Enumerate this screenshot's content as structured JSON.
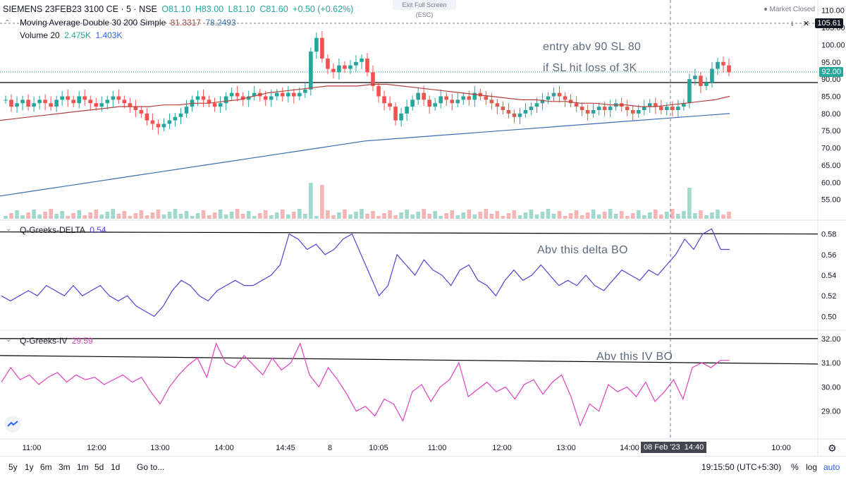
{
  "header": {
    "symbol": "SIEMENS 23FEB23 3100 CE · 5 · NSE",
    "open": "O81.10",
    "high": "H83.00",
    "low": "L81.10",
    "close": "C81.60",
    "change": "+0.50 (+0.62%)",
    "exit_fullscreen": "Exit Full Screen (ESC)",
    "market_status": "Market Closed"
  },
  "indicators": {
    "ma_label": "Moving Average Double 30 200 Simple",
    "ma_value_1": "81.3317",
    "ma_value_2": "78.2493",
    "volume_label": "Volume 20",
    "volume_value_1": "2.475K",
    "volume_value_2": "1.403K",
    "delta_label": "Q-Greeks-DELTA",
    "delta_value": "0.54",
    "iv_label": "Q-Greeks-IV",
    "iv_value": "29.59"
  },
  "annotations": {
    "entry": "entry abv 90 SL 80",
    "loss": "if SL hit loss of 3K",
    "delta_note": "Abv this delta BO",
    "iv_note": "Abv this IV BO"
  },
  "price_labels": {
    "current_high": "105.61",
    "current": "92.00"
  },
  "crosshair": {
    "date": "08 Feb '23",
    "time": "14:40"
  },
  "bottom_bar": {
    "timeframes": [
      "5y",
      "1y",
      "6m",
      "3m",
      "1m",
      "5d",
      "1d"
    ],
    "goto": "Go to...",
    "clock": "19:15:50 (UTC+5:30)",
    "percent": "%",
    "log": "log",
    "auto": "auto"
  },
  "colors": {
    "up": "#26a69a",
    "down": "#ef5350",
    "ma30": "#b2413a",
    "ma200": "#3a6fb2",
    "delta": "#5b3fd6",
    "iv": "#e040c0",
    "volume_up": "#9fd9cd",
    "volume_down": "#f6b4b4"
  },
  "chart_data": [
    {
      "type": "candlestick",
      "ylim": [
        50,
        112
      ],
      "yticks": [
        "110.00",
        "105.00",
        "100.00",
        "95.00",
        "90.00",
        "85.00",
        "80.00",
        "75.00",
        "70.00",
        "65.00",
        "60.00",
        "55.00"
      ],
      "xticks": [
        "11:00",
        "12:00",
        "13:00",
        "14:00",
        "14:45",
        "8",
        "10:05",
        "11:00",
        "12:00",
        "13:00",
        "14:00",
        "10:00"
      ],
      "horizontal_lines": [
        89
      ],
      "close": [
        84,
        82,
        83,
        84,
        82,
        83,
        84,
        83,
        82,
        84,
        85,
        84,
        83,
        85,
        84,
        83,
        82,
        83,
        84,
        85,
        84,
        83,
        82,
        81,
        80,
        78,
        77,
        76,
        77,
        78,
        79,
        80,
        82,
        84,
        85,
        84,
        83,
        82,
        83,
        85,
        86,
        85,
        84,
        85,
        86,
        85,
        84,
        85,
        86,
        85,
        86,
        85,
        86,
        87,
        98,
        102,
        96,
        93,
        92,
        94,
        93,
        94,
        95,
        96,
        92,
        88,
        85,
        83,
        82,
        78,
        80,
        82,
        84,
        86,
        84,
        82,
        83,
        85,
        84,
        83,
        84,
        85,
        84,
        86,
        85,
        84,
        83,
        82,
        81,
        80,
        79,
        80,
        81,
        82,
        83,
        84,
        85,
        86,
        85,
        84,
        83,
        82,
        81,
        80,
        81,
        82,
        81,
        82,
        83,
        82,
        81,
        80,
        81,
        82,
        83,
        82,
        81,
        82,
        81,
        82,
        83,
        90,
        91,
        88,
        89,
        93,
        95,
        94,
        92
      ],
      "volume_note": "volume bars shown in lower portion of price pane",
      "ma30": [
        78,
        78.5,
        79,
        79.5,
        80,
        80.5,
        81,
        81.5,
        82,
        82,
        82,
        82.5,
        82.5,
        83,
        83,
        83.5,
        84,
        85,
        86,
        86.5,
        87,
        87.5,
        88,
        88,
        88,
        88.5,
        88.5,
        88,
        87.5,
        87,
        86.5,
        86,
        85.5,
        85,
        84.5,
        84,
        84,
        83.5,
        83.5,
        83,
        83,
        82.5,
        82.5,
        82,
        82,
        82.5,
        83,
        83.5,
        84,
        85
      ],
      "ma200": [
        56,
        57,
        58,
        59,
        60,
        61,
        62,
        63,
        64,
        65,
        66,
        67,
        68,
        69,
        70,
        71,
        72,
        72.5,
        73,
        73.5,
        74,
        74.5,
        75,
        75.5,
        76,
        76.5,
        77,
        77.5,
        78,
        78.5,
        79,
        79.5,
        80
      ]
    },
    {
      "type": "line",
      "name": "Q-Greeks-DELTA",
      "ylim": [
        0.49,
        0.59
      ],
      "yticks": [
        "0.58",
        "0.56",
        "0.54",
        "0.52",
        "0.50"
      ],
      "horizontal_lines": [
        0.58
      ],
      "values": [
        0.52,
        0.515,
        0.52,
        0.525,
        0.52,
        0.53,
        0.525,
        0.52,
        0.53,
        0.52,
        0.525,
        0.53,
        0.52,
        0.515,
        0.52,
        0.51,
        0.505,
        0.5,
        0.51,
        0.525,
        0.535,
        0.53,
        0.52,
        0.515,
        0.525,
        0.53,
        0.535,
        0.53,
        0.53,
        0.535,
        0.54,
        0.55,
        0.58,
        0.575,
        0.565,
        0.57,
        0.56,
        0.565,
        0.575,
        0.58,
        0.56,
        0.54,
        0.52,
        0.53,
        0.56,
        0.55,
        0.54,
        0.555,
        0.545,
        0.54,
        0.53,
        0.545,
        0.55,
        0.535,
        0.53,
        0.52,
        0.535,
        0.545,
        0.535,
        0.54,
        0.55,
        0.54,
        0.53,
        0.535,
        0.53,
        0.54,
        0.53,
        0.525,
        0.535,
        0.545,
        0.54,
        0.535,
        0.545,
        0.54,
        0.55,
        0.56,
        0.575,
        0.565,
        0.58,
        0.585,
        0.565,
        0.565
      ]
    },
    {
      "type": "line",
      "name": "Q-Greeks-IV",
      "ylim": [
        28,
        32.2
      ],
      "yticks": [
        "32.00",
        "31.00",
        "30.00",
        "29.00"
      ],
      "horizontal_lines": [
        32.0,
        31.0
      ],
      "values": [
        30.2,
        30.8,
        30.3,
        30.5,
        30.1,
        30.4,
        30.6,
        30.2,
        30.5,
        30.3,
        30.4,
        30.1,
        30.3,
        30.5,
        30.2,
        30.4,
        29.8,
        29.3,
        30.0,
        30.5,
        30.9,
        31.2,
        30.4,
        31.8,
        31.0,
        30.8,
        31.3,
        30.9,
        30.5,
        31.2,
        30.7,
        31.0,
        31.8,
        30.5,
        30.0,
        30.8,
        30.3,
        29.7,
        29.0,
        29.2,
        28.8,
        29.5,
        29.3,
        28.6,
        29.8,
        30.1,
        29.4,
        30.0,
        30.3,
        31.0,
        29.6,
        29.9,
        30.2,
        29.8,
        30.0,
        29.5,
        30.1,
        30.3,
        29.7,
        30.2,
        30.5,
        29.6,
        28.4,
        29.3,
        29.0,
        30.1,
        29.8,
        30.0,
        29.6,
        30.2,
        29.4,
        29.8,
        30.3,
        29.5,
        30.8,
        31.0,
        30.8,
        31.1,
        31.1
      ]
    }
  ]
}
